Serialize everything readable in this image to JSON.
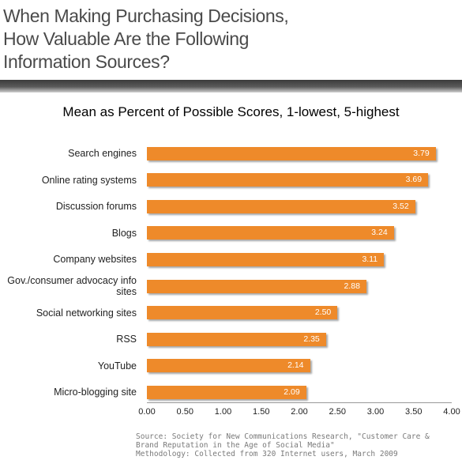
{
  "header": {
    "title_lines": [
      "When Making Purchasing Decisions,",
      "How Valuable Are the Following",
      "Information Sources?"
    ]
  },
  "chart_data": {
    "type": "bar",
    "orientation": "horizontal",
    "title": "When Making Purchasing Decisions, How Valuable Are the Following Information Sources?",
    "subtitle": "Mean as Percent of Possible Scores, 1-lowest, 5-highest",
    "categories": [
      "Search engines",
      "Online rating systems",
      "Discussion forums",
      "Blogs",
      "Company websites",
      "Gov./consumer advocacy info sites",
      "Social networking sites",
      "RSS",
      "YouTube",
      "Micro-blogging site"
    ],
    "values": [
      3.79,
      3.69,
      3.52,
      3.24,
      3.11,
      2.88,
      2.5,
      2.35,
      2.14,
      2.09
    ],
    "value_labels": [
      "3.79",
      "3.69",
      "3.52",
      "3.24",
      "3.11",
      "2.88",
      "2.50",
      "2.35",
      "2.14",
      "2.09"
    ],
    "xlim": [
      0,
      4
    ],
    "x_ticks": [
      "0.00",
      "0.50",
      "1.00",
      "1.50",
      "2.00",
      "2.50",
      "3.00",
      "3.50",
      "4.00"
    ],
    "grid": false,
    "legend": "none",
    "bar_color": "#ee8a2a"
  },
  "source": {
    "lines": [
      "Source: Society for New Communications Research, \"Customer Care &",
      "Brand Reputation in the Age of Social Media\"",
      "Methodology: Collected from  320 Internet users, March 2009"
    ]
  },
  "colors": {
    "title_text": "#4a4a4a",
    "source_text": "#7a7a7a",
    "bar": "#ee8a2a"
  }
}
